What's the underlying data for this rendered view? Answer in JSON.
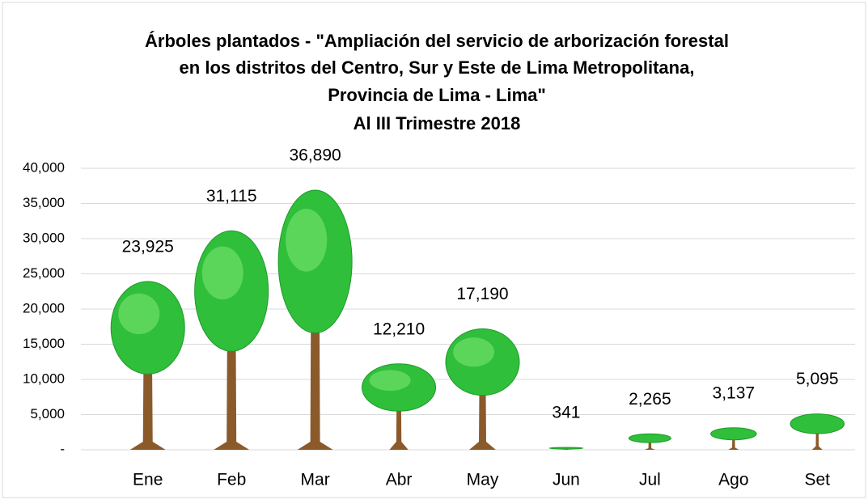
{
  "chart_data": {
    "type": "bar",
    "title": [
      "Árboles plantados - \"Ampliación del servicio de  arborización forestal",
      "en los distritos del Centro, Sur y Este de Lima Metropolitana,",
      "Provincia de Lima - Lima\"",
      "Al III Trimestre 2018"
    ],
    "categories": [
      "Ene",
      "Feb",
      "Mar",
      "Abr",
      "May",
      "Jun",
      "Jul",
      "Ago",
      "Set"
    ],
    "values": [
      23925,
      31115,
      36890,
      12210,
      17190,
      341,
      2265,
      3137,
      5095
    ],
    "value_labels": [
      "23,925",
      "31,115",
      "36,890",
      "12,210",
      "17,190",
      "341",
      "2,265",
      "3,137",
      "5,095"
    ],
    "color": "#2fbf3a",
    "ylim": [
      0,
      40000
    ],
    "yticks": [
      {
        "value": 0,
        "label": "-"
      },
      {
        "value": 5000,
        "label": "5,000"
      },
      {
        "value": 10000,
        "label": "10,000"
      },
      {
        "value": 15000,
        "label": "15,000"
      },
      {
        "value": 20000,
        "label": "20,000"
      },
      {
        "value": 25000,
        "label": "25,000"
      },
      {
        "value": 30000,
        "label": "30,000"
      },
      {
        "value": 35000,
        "label": "35,000"
      },
      {
        "value": 40000,
        "label": "40,000"
      }
    ],
    "grid": true
  }
}
